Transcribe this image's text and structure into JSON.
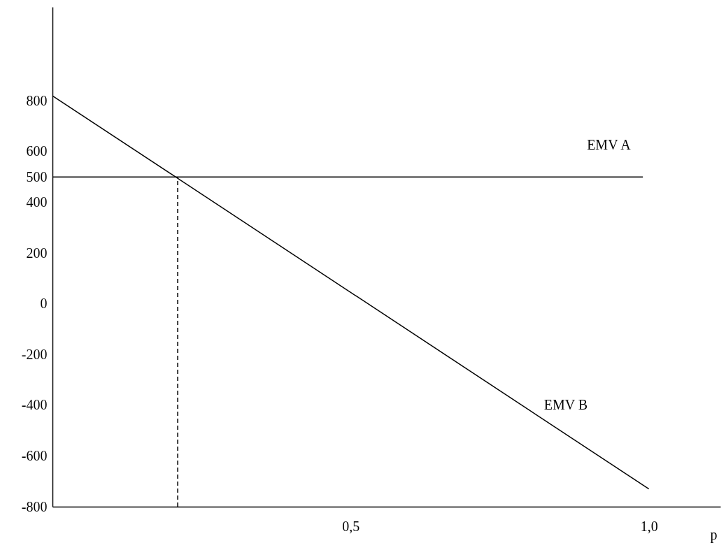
{
  "chart_data": {
    "type": "line",
    "xlabel": "p",
    "series": [
      {
        "name": "EMV A",
        "color": "#000000",
        "x": [
          0,
          0.99
        ],
        "values": [
          500,
          500
        ]
      },
      {
        "name": "EMV B",
        "color": "#000000",
        "x": [
          0,
          1.0
        ],
        "values": [
          820,
          -730
        ]
      },
      {
        "color": "#000000",
        "x": [
          0.21,
          0.21
        ],
        "values": [
          -800,
          500
        ],
        "line_style": "dashed"
      }
    ],
    "xlim": [
      0,
      1.12
    ],
    "ylim": [
      -800,
      1170
    ],
    "xticks": [
      {
        "value": 0.5,
        "label": "0,5"
      },
      {
        "value": 1.0,
        "label": "1,0"
      }
    ],
    "yticks": [
      -800,
      -600,
      -400,
      -200,
      0,
      200,
      400,
      500,
      600,
      800
    ],
    "grid": false,
    "marker": "none",
    "line_style": "solid"
  }
}
